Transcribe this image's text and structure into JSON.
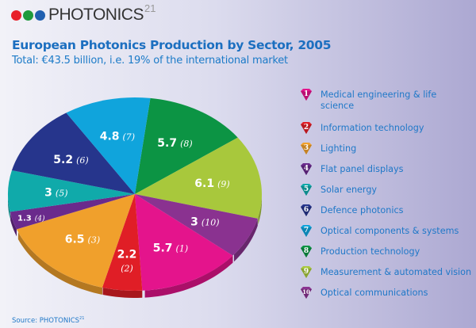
{
  "logo": {
    "text": "PHOTONICS",
    "superscript": "21",
    "dots": [
      "#e8202a",
      "#1e9a3c",
      "#1f5fb0"
    ]
  },
  "header": {
    "title": "European Photonics Production by Sector, 2005",
    "subtitle": "Total: €43.5 billion, i.e. 19% of the international market"
  },
  "source": {
    "text": "Source: PHOTONICS",
    "superscript": "21"
  },
  "chart_data": {
    "type": "pie",
    "title": "European Photonics Production by Sector, 2005",
    "subtitle": "Total: €43.5 billion, i.e. 19% of the international market",
    "unit": "€ billion",
    "total": 43.5,
    "legend_position": "right",
    "slices": [
      {
        "id": 1,
        "label": "Medical engineering & life science",
        "value": 5.7,
        "color": "#e4148c"
      },
      {
        "id": 2,
        "label": "Information technology",
        "value": 2.2,
        "color": "#e01e26"
      },
      {
        "id": 3,
        "label": "Lighting",
        "value": 6.5,
        "color": "#f0a02c"
      },
      {
        "id": 4,
        "label": "Flat panel displays",
        "value": 1.3,
        "color": "#6a2a8c"
      },
      {
        "id": 5,
        "label": "Solar energy",
        "value": 3,
        "color": "#10aaaa"
      },
      {
        "id": 6,
        "label": "Defence photonics",
        "value": 5.2,
        "color": "#26358c"
      },
      {
        "id": 7,
        "label": "Optical components & systems",
        "value": 4.8,
        "color": "#10a4dc"
      },
      {
        "id": 8,
        "label": "Production technology",
        "value": 5.7,
        "color": "#0c9444"
      },
      {
        "id": 9,
        "label": "Measurement & automated vision",
        "value": 6.1,
        "color": "#a8c83c"
      },
      {
        "id": 10,
        "label": "Optical communications",
        "value": 3,
        "color": "#8a3290"
      }
    ],
    "clockwise_order_from_top": [
      8,
      9,
      10,
      1,
      2,
      3,
      4,
      5,
      6,
      7
    ]
  }
}
